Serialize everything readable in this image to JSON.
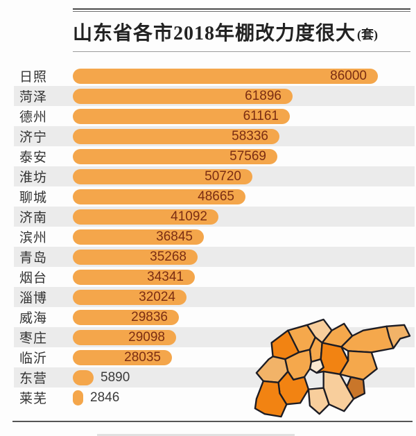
{
  "header": {
    "title": "山东省各市2018年棚改力度很大",
    "unit": "(套)"
  },
  "chart_data": {
    "type": "bar",
    "orientation": "horizontal",
    "title": "山东省各市2018年棚改力度很大(套)",
    "categories": [
      "日照",
      "菏泽",
      "德州",
      "济宁",
      "泰安",
      "淮坊",
      "聊城",
      "济南",
      "滨州",
      "青岛",
      "烟台",
      "淄博",
      "威海",
      "枣庄",
      "临沂",
      "东营",
      "莱芜"
    ],
    "values": [
      86000,
      61896,
      61161,
      58336,
      57569,
      50720,
      48665,
      41092,
      36845,
      35268,
      34341,
      32024,
      29836,
      29098,
      28035,
      5890,
      2846
    ],
    "xlim": [
      0,
      86000
    ],
    "value_labels_shown": true,
    "grid": false,
    "legend": false,
    "striped_rows": true
  },
  "map": {
    "name": "shandong-province-map"
  },
  "theme": {
    "bar-color": "#F4A64B",
    "stripe-color": "#EBEBEB",
    "value-in-color": "#7B2D12",
    "value-out-color": "#3A3A3A",
    "label-color": "#333333",
    "title-color": "#222222",
    "rule-color": "#4A4A4A",
    "map-outline": "#1C1C24",
    "map-deep": "#F28312",
    "map-mid": "#F5A84C",
    "map-light": "#F2B368",
    "map-peach": "#F8CE9C",
    "map-cream": "#FAE8D0",
    "map-dark": "#C9762A"
  }
}
